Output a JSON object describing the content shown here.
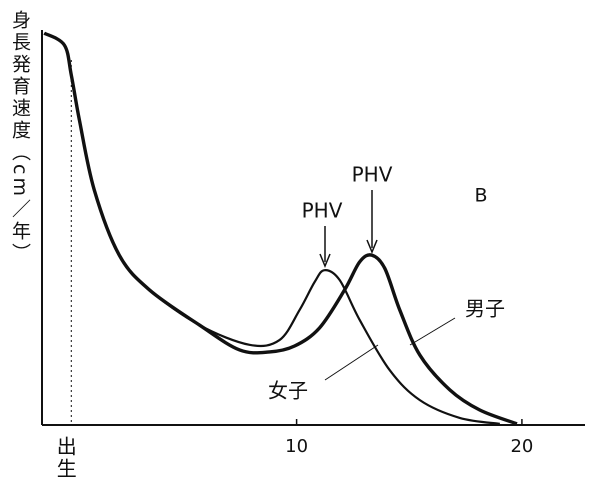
{
  "chart_data": {
    "type": "line",
    "y_label": "身長発育速度（cm／年）",
    "xlim": [
      -1.3,
      22.8
    ],
    "ylim": [
      0,
      100
    ],
    "xticks": [
      {
        "value": 0,
        "label": "出生"
      },
      10,
      20
    ],
    "annotations": [
      "PHV",
      "PHV",
      "B"
    ],
    "series": [
      {
        "name": "女子",
        "color": "#111111",
        "x": [
          -1.2,
          -0.31,
          0,
          0.36,
          1.02,
          2.13,
          3.47,
          5.69,
          7.91,
          9.24,
          10.13,
          10.8,
          11.24,
          11.91,
          12.8,
          14.13,
          15.47,
          17.24,
          19.02
        ],
        "values": [
          99.2,
          96.2,
          88.6,
          77.2,
          59.5,
          43.0,
          34.2,
          25.3,
          20.3,
          21.5,
          29.1,
          36.2,
          39.2,
          36.7,
          26.6,
          13.9,
          6.3,
          1.8,
          0.3
        ]
      },
      {
        "name": "男子",
        "color": "#111111",
        "x": [
          -1.2,
          -0.31,
          0,
          0.36,
          1.02,
          2.13,
          3.47,
          5.69,
          7.47,
          8.8,
          9.91,
          11.02,
          12.13,
          12.8,
          13.33,
          13.91,
          14.58,
          15.47,
          16.8,
          18.13,
          19.78
        ],
        "values": [
          99.2,
          96.2,
          88.6,
          77.2,
          59.5,
          43.0,
          34.2,
          25.3,
          19.0,
          18.5,
          20.0,
          24.6,
          34.2,
          41.3,
          43.0,
          39.7,
          29.1,
          17.7,
          8.9,
          3.8,
          0.3
        ]
      }
    ]
  }
}
